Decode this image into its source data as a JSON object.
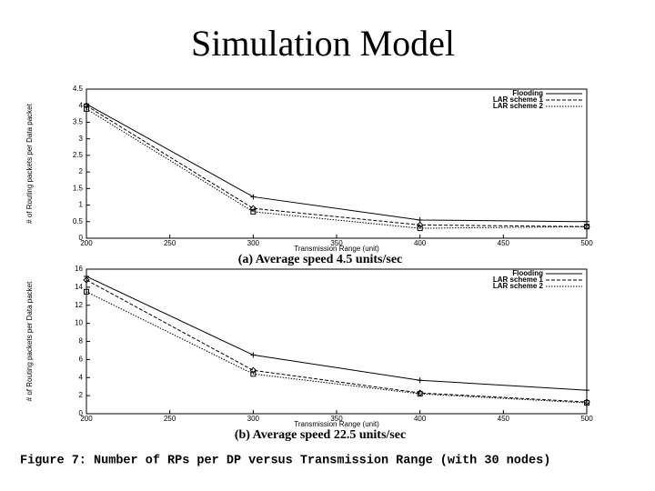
{
  "title": "Simulation Model",
  "caption": "Figure 7: Number of RPs per DP versus Transmission Range (with 30 nodes)",
  "chart_data": [
    {
      "type": "line",
      "title": "(a) Average speed 4.5 units/sec",
      "x_label": "Transmission Range (unit)",
      "y_label": "# of Routing packets per Data packet",
      "x": [
        200,
        300,
        400,
        500
      ],
      "xlim": [
        200,
        500
      ],
      "xticks": [
        200,
        250,
        300,
        350,
        400,
        450,
        500
      ],
      "ylim": [
        0,
        4.5
      ],
      "yticks": [
        0,
        0.5,
        1,
        1.5,
        2,
        2.5,
        3,
        3.5,
        4,
        4.5
      ],
      "legend": "upper right",
      "series": [
        {
          "name": "Flooding",
          "color": "#000000",
          "marker": "plus",
          "values": [
            4.05,
            1.25,
            0.55,
            0.5
          ]
        },
        {
          "name": "LAR scheme 1",
          "color": "#000000",
          "marker": "diamond",
          "values": [
            4.0,
            0.9,
            0.4,
            0.35
          ]
        },
        {
          "name": "LAR scheme 2",
          "color": "#000000",
          "marker": "square",
          "values": [
            3.9,
            0.8,
            0.3,
            0.35
          ]
        }
      ]
    },
    {
      "type": "line",
      "title": "(b) Average speed 22.5 units/sec",
      "x_label": "Transmission Range (unit)",
      "y_label": "# of Routing packets per Data packet",
      "x": [
        200,
        300,
        400,
        500
      ],
      "xlim": [
        200,
        500
      ],
      "xticks": [
        200,
        250,
        300,
        350,
        400,
        450,
        500
      ],
      "ylim": [
        0,
        16
      ],
      "yticks": [
        0,
        2,
        4,
        6,
        8,
        10,
        12,
        14,
        16
      ],
      "legend": "upper right",
      "series": [
        {
          "name": "Flooding",
          "color": "#000000",
          "marker": "plus",
          "values": [
            15.2,
            6.5,
            3.7,
            2.6
          ]
        },
        {
          "name": "LAR scheme 1",
          "color": "#000000",
          "marker": "diamond",
          "values": [
            14.8,
            4.8,
            2.3,
            1.3
          ]
        },
        {
          "name": "LAR scheme 2",
          "color": "#000000",
          "marker": "square",
          "values": [
            13.5,
            4.4,
            2.2,
            1.2
          ]
        }
      ]
    }
  ]
}
